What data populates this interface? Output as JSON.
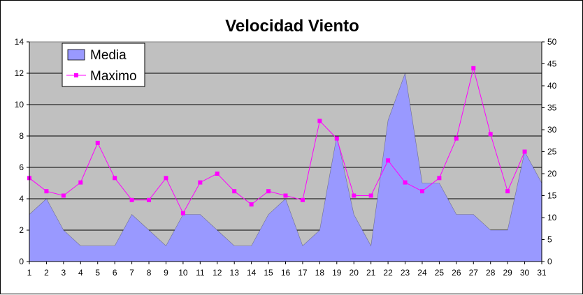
{
  "chart_data": {
    "type": "area+line",
    "title": "Velocidad Viento",
    "x": [
      1,
      2,
      3,
      4,
      5,
      6,
      7,
      8,
      9,
      10,
      11,
      12,
      13,
      14,
      15,
      16,
      17,
      18,
      19,
      20,
      21,
      22,
      23,
      24,
      25,
      26,
      27,
      28,
      29,
      30,
      31
    ],
    "y_left": {
      "min": 0,
      "max": 14,
      "step": 2
    },
    "y_right": {
      "min": 0,
      "max": 50,
      "step": 5
    },
    "grid": true,
    "legend_position": "top-left",
    "series": [
      {
        "name": "Media",
        "kind": "area",
        "axis": "left",
        "color": "#9999ff",
        "values": [
          3,
          4,
          2,
          1,
          1,
          1,
          3,
          2,
          1,
          3,
          3,
          2,
          1,
          1,
          3,
          4,
          1,
          2,
          8,
          3,
          1,
          9,
          12,
          5,
          5,
          3,
          3,
          2,
          2,
          7,
          5
        ]
      },
      {
        "name": "Maximo",
        "kind": "line",
        "axis": "right",
        "color": "#ff00ff",
        "values": [
          19,
          16,
          15,
          18,
          27,
          19,
          14,
          14,
          19,
          11,
          18,
          20,
          16,
          13,
          16,
          15,
          14,
          32,
          28,
          15,
          15,
          23,
          18,
          16,
          19,
          28,
          44,
          29,
          16,
          25,
          null
        ]
      }
    ]
  },
  "colors": {
    "plot_background": "#c0c0c0",
    "gridline": "#000000",
    "area_fill": "#9999ff",
    "line": "#ff00ff"
  }
}
